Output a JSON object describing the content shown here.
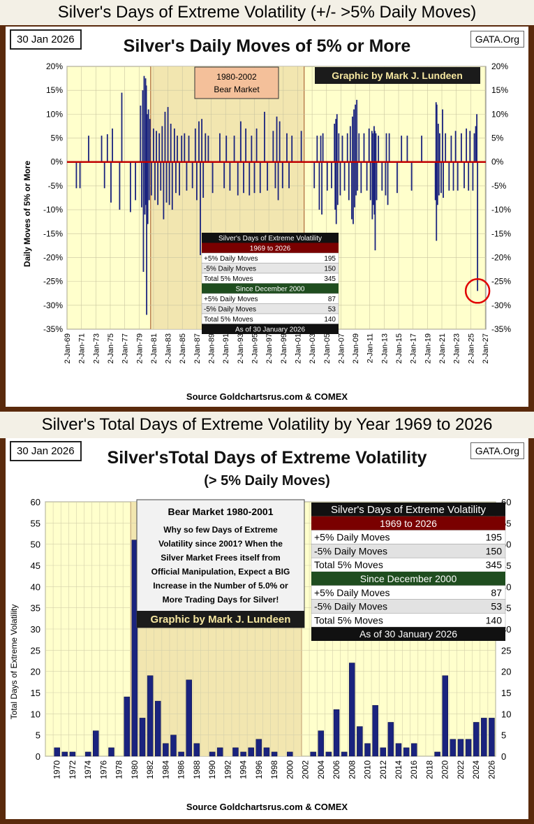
{
  "top": {
    "banner": "Silver's Days of Extreme Volatility (+/- >5% Daily Moves)",
    "date": "30 Jan 2026",
    "gata": "GATA.Org",
    "title": "Silver's Daily Moves of 5% or More",
    "ylabel": "Daily  Moves  of  5%  or  More",
    "bear_label_1": "1980-2002",
    "bear_label_2": "Bear Market",
    "credit": "Graphic by Mark J. Lundeen",
    "source": "Source  Goldchartsrus.com  &  COMEX"
  },
  "bottom": {
    "banner": "Silver's Total Days of Extreme Volatility by Year 1969 to 2026",
    "date": "30 Jan 2026",
    "gata": "GATA.Org",
    "title": "Silver'sTotal Days of Extreme Volatility",
    "subtitle": "(> 5% Daily Moves)",
    "ylabel": "Total Days of Extreme Volatility",
    "note_title": "Bear Market 1980-2001",
    "note_lines": [
      "Why so few Days of Extreme",
      "Volatility since 2001?  When the",
      "Silver Market Frees itself from",
      "Official Manipulation, Expect a BIG",
      "Increase in the Number of 5.0% or",
      "More Trading Days for Silver!"
    ],
    "credit": "Graphic by Mark J. Lundeen",
    "source": "Source  Goldchartsrus.com  &  COMEX"
  },
  "stats": {
    "title": "Silver's Days of Extreme Volatility",
    "period1": "1969 to 2026",
    "period1_rows": [
      [
        "+5% Daily Moves",
        "195"
      ],
      [
        "-5% Daily Moves",
        "150"
      ],
      [
        "Total 5% Moves",
        "345"
      ]
    ],
    "period2": "Since December 2000",
    "period2_rows": [
      [
        "+5% Daily Moves",
        "87"
      ],
      [
        "-5% Daily Moves",
        "53"
      ],
      [
        "Total 5% Moves",
        "140"
      ]
    ],
    "top_footer": "As of 30 January 2026",
    "bottom_footer": "As of  30 January 2026"
  },
  "colors": {
    "bar": "#1a237e",
    "zero": "#c00000",
    "plot_bg": "#ffffcc",
    "bear_bg": "#f2e6b0",
    "dark": "#111111",
    "red_header": "#7a0000",
    "green_header": "#1f4d1f"
  },
  "chart_data": [
    {
      "type": "bar",
      "title": "Silver's Daily Moves of 5% or More",
      "ylabel": "Daily Moves of 5% or More",
      "ylim": [
        -35,
        20
      ],
      "xlim": [
        1969.0,
        2027.1
      ],
      "yticks": [
        20,
        15,
        10,
        5,
        0,
        -5,
        -10,
        -15,
        -20,
        -25,
        -30,
        -35
      ],
      "xtick_labels": [
        "2-Jan-69",
        "2-Jan-71",
        "2-Jan-73",
        "2-Jan-75",
        "2-Jan-77",
        "2-Jan-79",
        "2-Jan-81",
        "2-Jan-83",
        "2-Jan-85",
        "2-Jan-87",
        "2-Jan-89",
        "2-Jan-91",
        "2-Jan-93",
        "2-Jan-95",
        "2-Jan-97",
        "2-Jan-99",
        "2-Jan-01",
        "2-Jan-03",
        "2-Jan-05",
        "2-Jan-07",
        "2-Jan-09",
        "2-Jan-11",
        "2-Jan-13",
        "2-Jan-15",
        "2-Jan-17",
        "2-Jan-19",
        "2-Jan-21",
        "2-Jan-23",
        "2-Jan-25",
        "2-Jan-27"
      ],
      "bear_market": [
        1980.6,
        2001.9
      ],
      "highlight": {
        "x": 2025.95,
        "y": -27
      },
      "points": [
        [
          1970.3,
          -5.5
        ],
        [
          1970.8,
          -5.5
        ],
        [
          1972.0,
          5.5
        ],
        [
          1973.8,
          5.5
        ],
        [
          1974.2,
          -5.5
        ],
        [
          1974.6,
          5.8
        ],
        [
          1975.1,
          -8.5
        ],
        [
          1975.3,
          7
        ],
        [
          1976.3,
          -10
        ],
        [
          1976.6,
          14.5
        ],
        [
          1977.8,
          -10.5
        ],
        [
          1978.5,
          -8
        ],
        [
          1979.2,
          11.8
        ],
        [
          1979.35,
          -9.5
        ],
        [
          1979.5,
          15
        ],
        [
          1979.6,
          -23
        ],
        [
          1979.7,
          18
        ],
        [
          1979.8,
          -11
        ],
        [
          1979.9,
          17.5
        ],
        [
          1979.95,
          -9
        ],
        [
          1980.0,
          16
        ],
        [
          1980.05,
          -32
        ],
        [
          1980.12,
          10
        ],
        [
          1980.2,
          -13
        ],
        [
          1980.3,
          11
        ],
        [
          1980.4,
          -8
        ],
        [
          1980.5,
          9
        ],
        [
          1980.7,
          -7
        ],
        [
          1981.0,
          7
        ],
        [
          1981.2,
          -8
        ],
        [
          1981.4,
          6.5
        ],
        [
          1981.6,
          -9
        ],
        [
          1981.8,
          6
        ],
        [
          1982.0,
          -6
        ],
        [
          1982.2,
          7.5
        ],
        [
          1982.4,
          -12
        ],
        [
          1982.6,
          10.5
        ],
        [
          1982.8,
          -8.5
        ],
        [
          1983.0,
          11.5
        ],
        [
          1983.2,
          -9
        ],
        [
          1983.4,
          8
        ],
        [
          1983.6,
          -10
        ],
        [
          1983.9,
          7
        ],
        [
          1984.1,
          -6.5
        ],
        [
          1984.3,
          5.5
        ],
        [
          1984.6,
          -7
        ],
        [
          1984.9,
          5.5
        ],
        [
          1985.3,
          6
        ],
        [
          1985.6,
          -6
        ],
        [
          1985.9,
          5.5
        ],
        [
          1986.4,
          -5.5
        ],
        [
          1986.8,
          7
        ],
        [
          1987.0,
          -8
        ],
        [
          1987.3,
          8.5
        ],
        [
          1987.5,
          -19.5
        ],
        [
          1987.7,
          9
        ],
        [
          1987.9,
          -7.5
        ],
        [
          1988.2,
          6
        ],
        [
          1988.6,
          5.5
        ],
        [
          1989.2,
          -6.5
        ],
        [
          1990.2,
          6
        ],
        [
          1990.8,
          -5.5
        ],
        [
          1991.1,
          5.5
        ],
        [
          1991.6,
          -6
        ],
        [
          1992.2,
          5.5
        ],
        [
          1992.7,
          -7
        ],
        [
          1993.1,
          8.5
        ],
        [
          1993.5,
          -6.5
        ],
        [
          1993.8,
          7
        ],
        [
          1994.3,
          -7
        ],
        [
          1994.6,
          5.5
        ],
        [
          1995.0,
          -6.5
        ],
        [
          1995.3,
          7
        ],
        [
          1995.8,
          -6.5
        ],
        [
          1996.4,
          10.5
        ],
        [
          1996.8,
          -6
        ],
        [
          1997.6,
          6.5
        ],
        [
          1997.9,
          -5.5
        ],
        [
          1998.1,
          9.5
        ],
        [
          1998.3,
          -8
        ],
        [
          1998.5,
          8.5
        ],
        [
          1998.9,
          -5.5
        ],
        [
          1999.5,
          6
        ],
        [
          1999.8,
          -5.5
        ],
        [
          2000.2,
          5.5
        ],
        [
          2001.5,
          6.5
        ],
        [
          2003.3,
          -5.5
        ],
        [
          2003.7,
          5.5
        ],
        [
          2004.0,
          -10
        ],
        [
          2004.2,
          5.5
        ],
        [
          2004.35,
          -11
        ],
        [
          2004.5,
          6
        ],
        [
          2005.1,
          -6
        ],
        [
          2005.7,
          -5.5
        ],
        [
          2006.1,
          8
        ],
        [
          2006.2,
          -10
        ],
        [
          2006.3,
          9
        ],
        [
          2006.35,
          -13
        ],
        [
          2006.45,
          10
        ],
        [
          2006.55,
          -9
        ],
        [
          2006.7,
          6
        ],
        [
          2006.9,
          -7
        ],
        [
          2007.2,
          5.5
        ],
        [
          2007.5,
          -6
        ],
        [
          2007.9,
          6
        ],
        [
          2008.1,
          -8
        ],
        [
          2008.3,
          7.5
        ],
        [
          2008.5,
          -12
        ],
        [
          2008.6,
          9.5
        ],
        [
          2008.7,
          -13
        ],
        [
          2008.8,
          11
        ],
        [
          2008.9,
          -9.5
        ],
        [
          2009.0,
          12
        ],
        [
          2009.1,
          -7
        ],
        [
          2009.2,
          13
        ],
        [
          2009.3,
          -6
        ],
        [
          2009.5,
          6
        ],
        [
          2009.8,
          -6.5
        ],
        [
          2010.2,
          6
        ],
        [
          2010.6,
          -6
        ],
        [
          2010.9,
          7
        ],
        [
          2011.1,
          -8
        ],
        [
          2011.3,
          6.5
        ],
        [
          2011.35,
          -12
        ],
        [
          2011.4,
          6
        ],
        [
          2011.5,
          -9
        ],
        [
          2011.6,
          7.5
        ],
        [
          2011.65,
          -11
        ],
        [
          2011.7,
          6.5
        ],
        [
          2011.75,
          -18.5
        ],
        [
          2011.85,
          6
        ],
        [
          2011.95,
          -8
        ],
        [
          2012.2,
          5.5
        ],
        [
          2012.7,
          -6
        ],
        [
          2013.2,
          -7
        ],
        [
          2013.3,
          6
        ],
        [
          2013.5,
          -9
        ],
        [
          2013.7,
          6
        ],
        [
          2014.8,
          -6.5
        ],
        [
          2015.4,
          5.5
        ],
        [
          2016.2,
          5.5
        ],
        [
          2016.8,
          -6
        ],
        [
          2018.2,
          5.5
        ],
        [
          2020.1,
          -8
        ],
        [
          2020.2,
          12.5
        ],
        [
          2020.25,
          -16.5
        ],
        [
          2020.3,
          12
        ],
        [
          2020.4,
          -9
        ],
        [
          2020.5,
          8
        ],
        [
          2020.6,
          -7
        ],
        [
          2020.7,
          6
        ],
        [
          2020.9,
          -6.5
        ],
        [
          2021.1,
          11
        ],
        [
          2021.2,
          -7.5
        ],
        [
          2021.5,
          6
        ],
        [
          2022.0,
          -6
        ],
        [
          2022.3,
          5.5
        ],
        [
          2022.6,
          -6
        ],
        [
          2022.9,
          6.5
        ],
        [
          2023.2,
          -6
        ],
        [
          2023.7,
          6
        ],
        [
          2024.1,
          -5.5
        ],
        [
          2024.4,
          7
        ],
        [
          2024.7,
          -6
        ],
        [
          2024.9,
          6.5
        ],
        [
          2025.3,
          -6
        ],
        [
          2025.5,
          6
        ],
        [
          2025.7,
          7.5
        ],
        [
          2025.85,
          10
        ],
        [
          2025.95,
          -27
        ]
      ]
    },
    {
      "type": "bar",
      "title": "Silver'sTotal Days of Extreme Volatility",
      "subtitle": "(> 5% Daily Moves)",
      "ylabel": "Total Days of Extreme Volatility",
      "ylim": [
        0,
        60
      ],
      "yticks": [
        0,
        5,
        10,
        15,
        20,
        25,
        30,
        35,
        40,
        45,
        50,
        55,
        60
      ],
      "bear_market": [
        1980,
        2001
      ],
      "categories": [
        1969,
        1970,
        1971,
        1972,
        1973,
        1974,
        1975,
        1976,
        1977,
        1978,
        1979,
        1980,
        1981,
        1982,
        1983,
        1984,
        1985,
        1986,
        1987,
        1988,
        1989,
        1990,
        1991,
        1992,
        1993,
        1994,
        1995,
        1996,
        1997,
        1998,
        1999,
        2000,
        2001,
        2002,
        2003,
        2004,
        2005,
        2006,
        2007,
        2008,
        2009,
        2010,
        2011,
        2012,
        2013,
        2014,
        2015,
        2016,
        2017,
        2018,
        2019,
        2020,
        2021,
        2022,
        2023,
        2024,
        2025,
        2026
      ],
      "values": [
        0,
        2,
        1,
        1,
        0,
        1,
        6,
        0,
        2,
        0,
        14,
        51,
        9,
        19,
        13,
        3,
        5,
        1,
        18,
        3,
        0,
        1,
        2,
        0,
        2,
        1,
        2,
        4,
        2,
        1,
        0,
        1,
        0,
        0,
        1,
        6,
        1,
        11,
        1,
        22,
        7,
        3,
        12,
        2,
        8,
        3,
        2,
        3,
        0,
        0,
        1,
        19,
        4,
        4,
        4,
        8,
        9,
        9
      ],
      "xtick_labels": [
        "1970",
        "1972",
        "1974",
        "1976",
        "1978",
        "1980",
        "1982",
        "1984",
        "1986",
        "1988",
        "1990",
        "1992",
        "1994",
        "1996",
        "1998",
        "2000",
        "2002",
        "2004",
        "2006",
        "2008",
        "2010",
        "2012",
        "2014",
        "2016",
        "2018",
        "2020",
        "2022",
        "2024",
        "2026"
      ]
    }
  ]
}
